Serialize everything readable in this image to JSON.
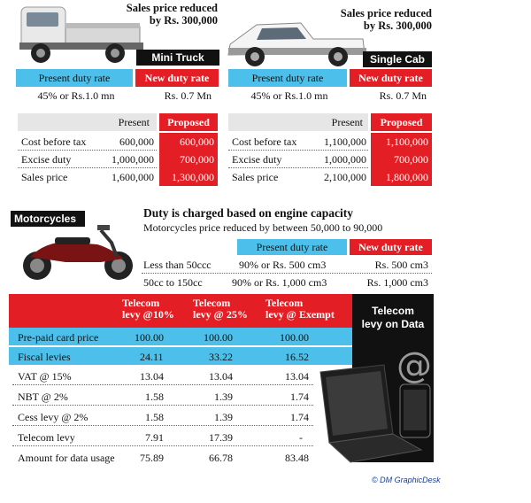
{
  "mini_truck": {
    "caption_line1": "Sales price  reduced",
    "caption_line2": "by Rs. 300,000",
    "label": "Mini  Truck",
    "present_duty_header": "Present duty rate",
    "new_duty_header": "New duty rate",
    "present_duty_value": "45% or Rs.1.0 mn",
    "new_duty_value": "Rs. 0.7 Mn",
    "table_present_header": "Present",
    "table_proposed_header": "Proposed",
    "rows": [
      {
        "label": "Cost before tax",
        "present": "600,000",
        "proposed": "600,000"
      },
      {
        "label": "Excise duty",
        "present": "1,000,000",
        "proposed": "700,000"
      },
      {
        "label": "Sales price",
        "present": "1,600,000",
        "proposed": "1,300,000"
      }
    ]
  },
  "single_cab": {
    "caption_line1": "Sales price reduced",
    "caption_line2": "by Rs. 300,000",
    "label": "Single Cab",
    "present_duty_header": "Present duty rate",
    "new_duty_header": "New duty rate",
    "present_duty_value": "45% or Rs.1.0 mn",
    "new_duty_value": "Rs. 0.7 Mn",
    "table_present_header": "Present",
    "table_proposed_header": "Proposed",
    "rows": [
      {
        "label": "Cost before tax",
        "present": "1,100,000",
        "proposed": "1,100,000"
      },
      {
        "label": "Excise duty",
        "present": "1,000,000",
        "proposed": "700,000"
      },
      {
        "label": "Sales price",
        "present": "2,100,000",
        "proposed": "1,800,000"
      }
    ]
  },
  "motorcycles": {
    "label": "Motorcycles",
    "title": "Duty is charged based on engine capacity",
    "subtitle": "Motorcycles price reduced by between 50,000 to 90,000",
    "present_header": "Present duty rate",
    "new_header": "New duty rate",
    "rows": [
      {
        "label": "Less than 50ccc",
        "present": "90% or Rs. 500 cm3",
        "new": "Rs. 500 cm3"
      },
      {
        "label": "50cc to 150cc",
        "present": "90% or Rs. 1,000 cm3",
        "new": "Rs. 1,000 cm3"
      }
    ]
  },
  "telecom": {
    "col_headers": [
      {
        "line1": "Telecom",
        "line2": "levy @10%"
      },
      {
        "line1": "Telecom",
        "line2": "levy @ 25%"
      },
      {
        "line1": "Telecom",
        "line2": "levy @ Exempt"
      }
    ],
    "side_label_line1": "Telecom",
    "side_label_line2": "levy on Data",
    "rows": [
      {
        "label": "Pre-paid card price",
        "v1": "100.00",
        "v2": "100.00",
        "v3": "100.00"
      },
      {
        "label": "Fiscal levies",
        "v1": "24.11",
        "v2": "33.22",
        "v3": "16.52"
      },
      {
        "label": "VAT @ 15%",
        "v1": "13.04",
        "v2": "13.04",
        "v3": "13.04"
      },
      {
        "label": "NBT @ 2%",
        "v1": "1.58",
        "v2": "1.39",
        "v3": "1.74"
      },
      {
        "label": "Cess levy @ 2%",
        "v1": "1.58",
        "v2": "1.39",
        "v3": "1.74"
      },
      {
        "label": "Telecom levy",
        "v1": "7.91",
        "v2": "17.39",
        "v3": "-"
      },
      {
        "label": "Amount for data usage",
        "v1": "75.89",
        "v2": "66.78",
        "v3": "83.48"
      }
    ]
  },
  "credit": "DM GraphicDesk",
  "colors": {
    "blue": "#4cc0ea",
    "red": "#e31e24",
    "black": "#111111"
  }
}
